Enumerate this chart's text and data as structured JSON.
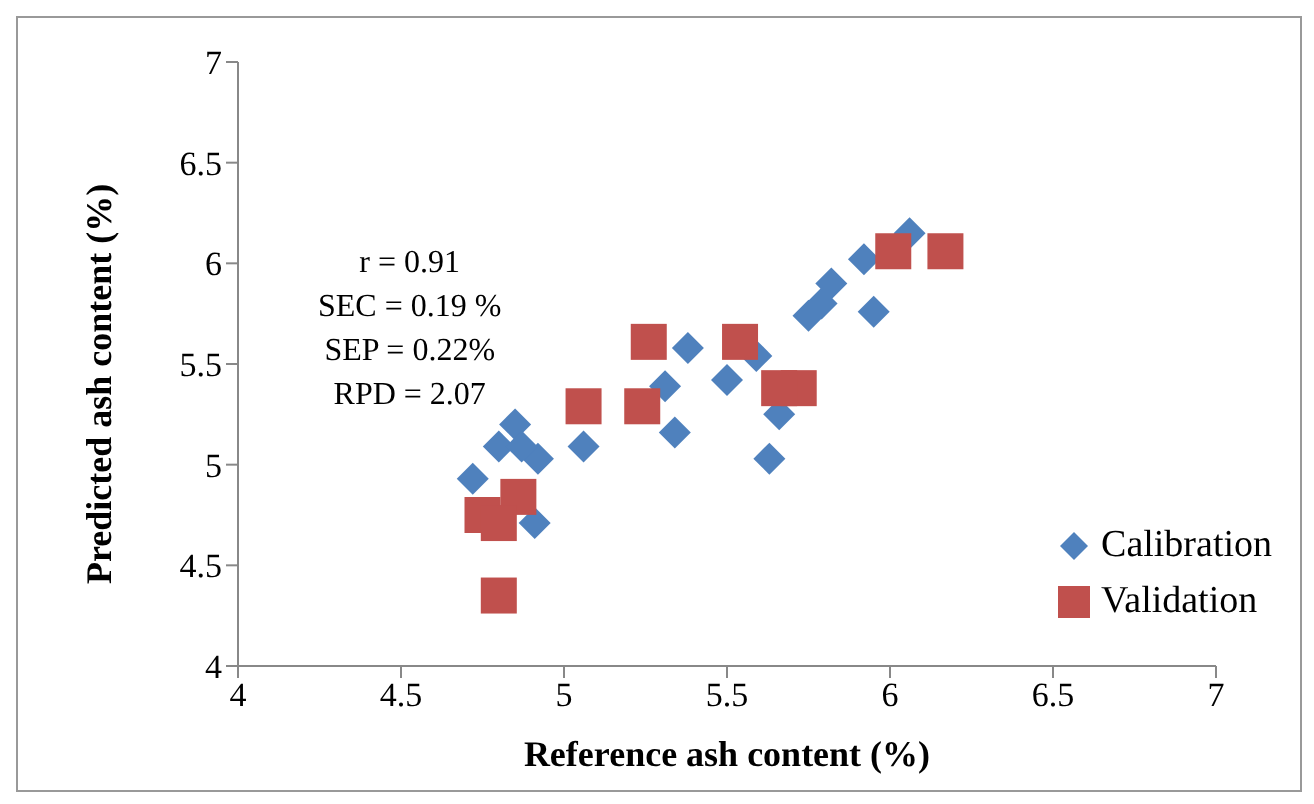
{
  "chart_data": {
    "type": "scatter",
    "xlabel": "Reference ash content  (%)",
    "ylabel": "Predicted ash content  (%)",
    "xlim": [
      4,
      7
    ],
    "xticks": [
      4,
      4.5,
      5,
      5.5,
      6,
      6.5,
      7
    ],
    "ylim": [
      4,
      7
    ],
    "yticks": [
      4,
      4.5,
      5,
      5.5,
      6,
      6.5,
      7
    ],
    "grid": false,
    "legend": "right",
    "annotations": [
      "r = 0.91",
      "SEC = 0.19 %",
      "SEP = 0.22%",
      "RPD = 2.07"
    ],
    "series": [
      {
        "name": "Calibration",
        "color": "#4f81bd",
        "marker": "diamond",
        "x": [
          6.06,
          5.92,
          5.95,
          5.79,
          5.82,
          5.75,
          5.59,
          5.5,
          5.66,
          5.63,
          5.38,
          5.31,
          5.34,
          5.06,
          4.85,
          4.8,
          4.92,
          4.72,
          4.91,
          4.87
        ],
        "values": [
          6.15,
          6.02,
          5.76,
          5.8,
          5.9,
          5.74,
          5.54,
          5.42,
          5.25,
          5.03,
          5.58,
          5.39,
          5.16,
          5.09,
          5.2,
          5.09,
          5.03,
          4.93,
          4.71,
          5.09
        ]
      },
      {
        "name": "Validation",
        "color": "#c0504d",
        "marker": "square",
        "x": [
          6.17,
          6.01,
          5.26,
          5.54,
          5.06,
          5.24,
          5.72,
          5.66,
          4.82,
          4.75,
          4.86,
          4.8,
          4.8
        ],
        "values": [
          6.06,
          6.06,
          5.61,
          5.61,
          5.29,
          5.29,
          5.38,
          5.38,
          null,
          4.75,
          4.84,
          4.35,
          4.71
        ]
      }
    ]
  }
}
